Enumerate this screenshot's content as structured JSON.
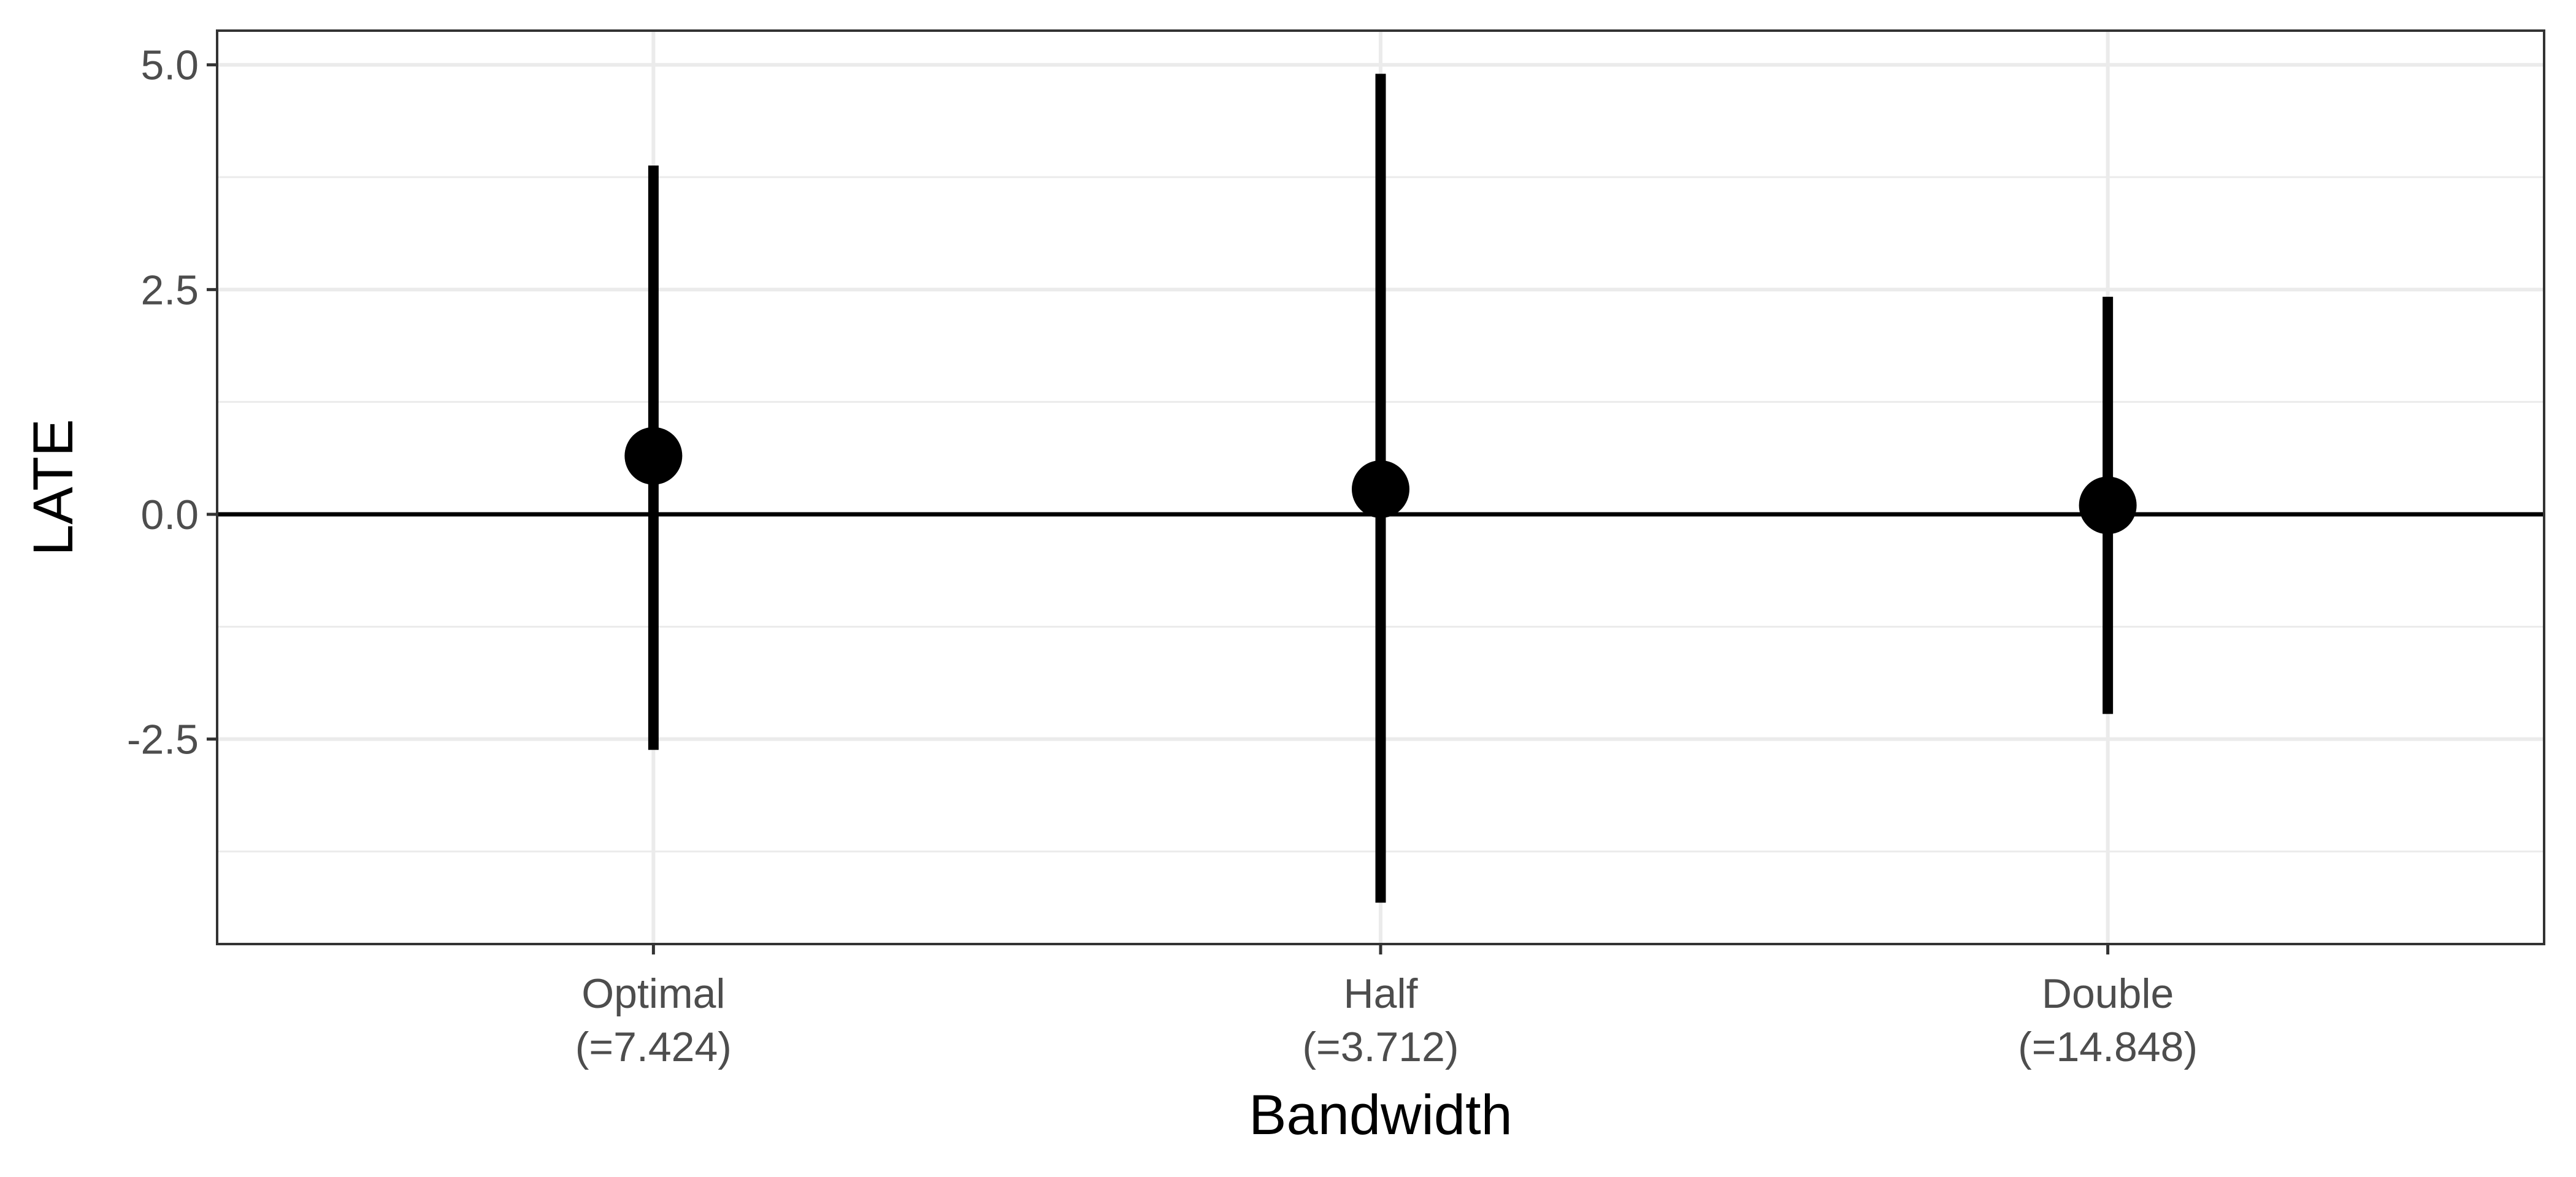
{
  "chart_data": {
    "type": "errorbar",
    "title": "",
    "xlabel": "Bandwidth",
    "ylabel": "LATE",
    "categories": [
      {
        "label": "Optimal",
        "sublabel": "(=7.424)"
      },
      {
        "label": "Half",
        "sublabel": "(=3.712)"
      },
      {
        "label": "Double",
        "sublabel": "(=14.848)"
      }
    ],
    "points": [
      {
        "estimate": 0.65,
        "lower": -2.62,
        "upper": 3.88
      },
      {
        "estimate": 0.28,
        "lower": -4.32,
        "upper": 4.9
      },
      {
        "estimate": 0.1,
        "lower": -2.22,
        "upper": 2.42
      }
    ],
    "ylim": [
      -4.78,
      5.38
    ],
    "yticks": [
      -2.5,
      0.0,
      2.5,
      5.0
    ],
    "ytick_labels": [
      "-2.5",
      "0.0",
      "2.5",
      "5.0"
    ],
    "hline": 0,
    "grid": true,
    "colors": {
      "marks": "#000000",
      "grid": "#ebebeb",
      "panel_border": "#333333"
    }
  }
}
